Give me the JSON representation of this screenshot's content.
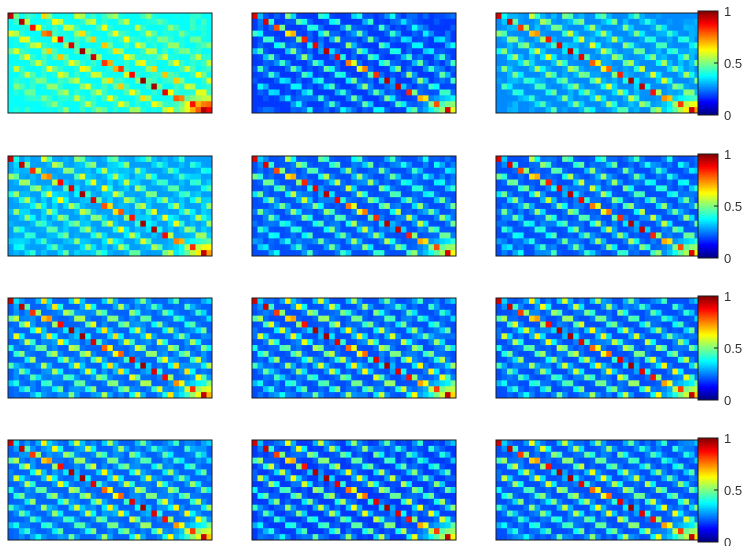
{
  "chart_data": {
    "type": "heatmap",
    "layout": {
      "rows": 4,
      "cols": 3
    },
    "matrix_size": [
      17,
      37
    ],
    "colormap": "jet",
    "clim": [
      0,
      1
    ],
    "grid": false,
    "colorbar": {
      "position": "right",
      "ticks": [
        "0",
        "0.5",
        "1"
      ]
    },
    "panels": [
      {
        "background": 0.38,
        "stripe": 0.68,
        "diagonal": 0.98,
        "corner": 0.88,
        "period": 5.4,
        "stripe_count": 4,
        "stripe_slope": 1.0
      },
      {
        "background": 0.18,
        "stripe": 0.52,
        "diagonal": 0.95,
        "corner": 0.6,
        "period": 5.4,
        "stripe_count": 4,
        "stripe_slope": 1.0
      },
      {
        "background": 0.26,
        "stripe": 0.6,
        "diagonal": 0.96,
        "corner": 0.72,
        "period": 5.4,
        "stripe_count": 4,
        "stripe_slope": 1.0
      },
      {
        "background": 0.28,
        "stripe": 0.62,
        "diagonal": 0.97,
        "corner": 0.72,
        "period": 5.4,
        "stripe_count": 5,
        "stripe_slope": 1.0
      },
      {
        "background": 0.2,
        "stripe": 0.58,
        "diagonal": 0.95,
        "corner": 0.62,
        "period": 5.4,
        "stripe_count": 5,
        "stripe_slope": 1.0
      },
      {
        "background": 0.2,
        "stripe": 0.58,
        "diagonal": 0.95,
        "corner": 0.62,
        "period": 5.4,
        "stripe_count": 5,
        "stripe_slope": 1.0
      },
      {
        "background": 0.22,
        "stripe": 0.66,
        "diagonal": 0.98,
        "corner": 0.7,
        "period": 5.2,
        "stripe_count": 6,
        "stripe_slope": 1.0
      },
      {
        "background": 0.2,
        "stripe": 0.64,
        "diagonal": 0.97,
        "corner": 0.66,
        "period": 5.2,
        "stripe_count": 6,
        "stripe_slope": 1.0
      },
      {
        "background": 0.2,
        "stripe": 0.64,
        "diagonal": 0.97,
        "corner": 0.66,
        "period": 5.2,
        "stripe_count": 6,
        "stripe_slope": 1.0
      },
      {
        "background": 0.22,
        "stripe": 0.64,
        "diagonal": 0.97,
        "corner": 0.68,
        "period": 5.2,
        "stripe_count": 6,
        "stripe_slope": 1.0
      },
      {
        "background": 0.18,
        "stripe": 0.62,
        "diagonal": 0.97,
        "corner": 0.62,
        "period": 5.2,
        "stripe_count": 6,
        "stripe_slope": 1.0
      },
      {
        "background": 0.2,
        "stripe": 0.62,
        "diagonal": 0.97,
        "corner": 0.64,
        "period": 5.2,
        "stripe_count": 6,
        "stripe_slope": 1.0
      }
    ]
  }
}
